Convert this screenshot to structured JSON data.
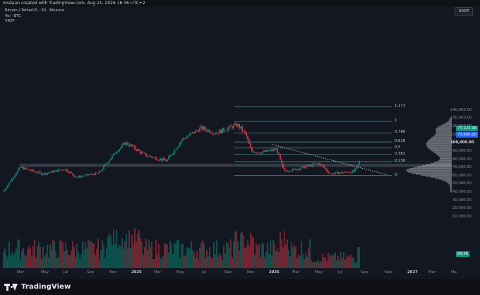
{
  "header": {
    "title": "msdaan created with TradingView.com, Aug 21, 2026 16:36 UTC+2"
  },
  "legend": {
    "symbol": "Bitcoin / TetherUS · 3D · Binance",
    "volume": "Vol · BTC",
    "vrvp": "VRVP"
  },
  "currency": "USDT",
  "price_axis": {
    "labels": [
      "140,000.00",
      "130,000.00",
      "120,000.00",
      "110,000.00",
      "100,000.00",
      "90,000.00",
      "80,000.00",
      "70,000.00",
      "60,000.00",
      "50,000.00",
      "40,000.00",
      "30,000.00",
      "20,000.00",
      "10,000.00"
    ],
    "last_price": "77,223.99",
    "level_tag": "73,690.00",
    "volume_tag": "69.4K",
    "colors": {
      "last": "#089981",
      "level": "#2962ff",
      "volume": "#089981"
    }
  },
  "time_axis": {
    "labels": [
      "Mar",
      "May",
      "Jul",
      "Sep",
      "Nov",
      "2025",
      "Mar",
      "May",
      "Jul",
      "Sep",
      "Nov",
      "2026",
      "Mar",
      "May",
      "Jul",
      "Sep",
      "Nov",
      "2027",
      "Mar",
      "Ma"
    ]
  },
  "fib_levels": [
    "1.272",
    "1",
    "0.786",
    "0.618",
    "0.5",
    "0.382",
    "0.236",
    "0"
  ],
  "brand": {
    "name": "TradingView"
  },
  "chart_data": {
    "type": "candlestick",
    "ylim": [
      0,
      150000
    ],
    "bull_color": "#089981",
    "bear_color": "#f23645",
    "fib_color": "#5fb8b0",
    "close_path": [
      [
        "Feb",
        41000
      ],
      [
        "Mar",
        70000
      ],
      [
        "May",
        62000
      ],
      [
        "Jul",
        68000
      ],
      [
        "Aug",
        58000
      ],
      [
        "Sep",
        63000
      ],
      [
        "Nov",
        90000
      ],
      [
        "Dec",
        100000
      ],
      [
        "2025",
        96000
      ],
      [
        "Feb",
        85000
      ],
      [
        "Apr",
        78000
      ],
      [
        "May",
        104000
      ],
      [
        "Jul",
        118000
      ],
      [
        "Aug",
        112000
      ],
      [
        "Oct",
        122000
      ],
      [
        "Oct",
        110000
      ],
      [
        "Nov",
        90000
      ],
      [
        "Dec",
        88000
      ],
      [
        "2026",
        92000
      ],
      [
        "Feb",
        65000
      ],
      [
        "Mar",
        68000
      ],
      [
        "Apr",
        75000
      ],
      [
        "May",
        62000
      ],
      [
        "Jun",
        63000
      ],
      [
        "Aug",
        65000
      ],
      [
        "Aug",
        77223.99
      ]
    ]
  }
}
